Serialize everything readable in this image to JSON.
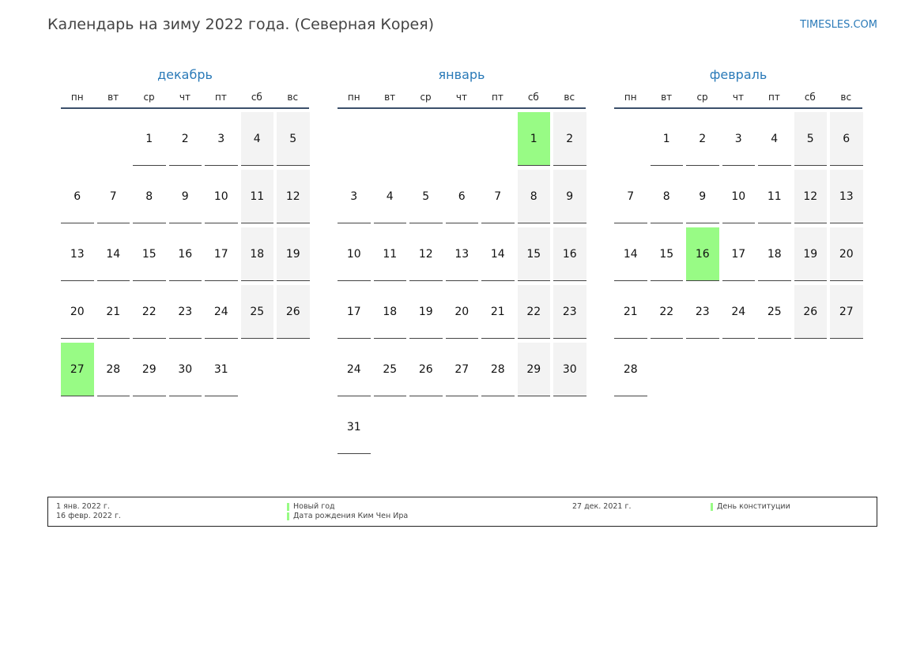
{
  "header": {
    "title": "Календарь на зиму 2022 года. (Северная Корея)",
    "site": "TIMESLES.COM"
  },
  "colors": {
    "holiday": "#98fb85",
    "weekend": "#f3f3f3",
    "accent": "#2a7ab8"
  },
  "weekdays": [
    "пн",
    "вт",
    "ср",
    "чт",
    "пт",
    "сб",
    "вс"
  ],
  "months": [
    {
      "name": "декабрь",
      "offset": 2,
      "days": 31,
      "holidays": [
        27
      ]
    },
    {
      "name": "январь",
      "offset": 5,
      "days": 31,
      "holidays": [
        1
      ]
    },
    {
      "name": "февраль",
      "offset": 1,
      "days": 28,
      "holidays": [
        16
      ]
    }
  ],
  "legend": [
    {
      "date": "1 янв. 2022 г.",
      "name": "Новый год"
    },
    {
      "date": "16 февр. 2022 г.",
      "name": "Дата рождения Ким Чен Ира"
    },
    {
      "date": "27 дек. 2021 г.",
      "name": "День конституции"
    }
  ]
}
